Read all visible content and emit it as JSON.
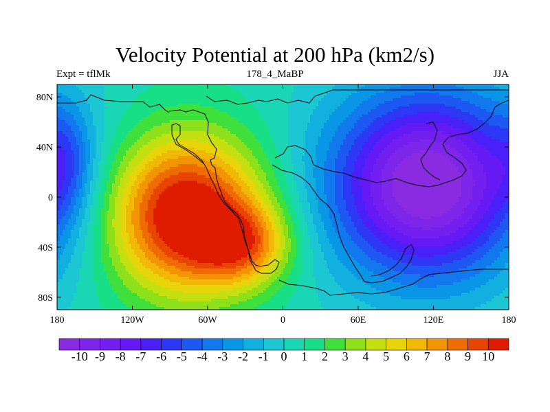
{
  "chart_data": {
    "type": "heatmap",
    "title": "Velocity Potential at 200 hPa (km2/s)",
    "left_label": "Expt = tflMk",
    "center_label": "178_4_MaBP",
    "right_label": "JJA",
    "x_range": [
      -180,
      180
    ],
    "y_range": [
      -90,
      90
    ],
    "x_ticks": [
      {
        "value": -180,
        "label": "180"
      },
      {
        "value": -120,
        "label": "120W"
      },
      {
        "value": -60,
        "label": "60W"
      },
      {
        "value": 0,
        "label": "0"
      },
      {
        "value": 60,
        "label": "60E"
      },
      {
        "value": 120,
        "label": "120E"
      },
      {
        "value": 180,
        "label": "180"
      }
    ],
    "y_ticks": [
      {
        "value": 80,
        "label": "80N"
      },
      {
        "value": 40,
        "label": "40N"
      },
      {
        "value": 0,
        "label": "0"
      },
      {
        "value": -40,
        "label": "40S"
      },
      {
        "value": -80,
        "label": "80S"
      }
    ],
    "colorbar": {
      "levels": [
        -10,
        -9,
        -8,
        -7,
        -6,
        -5,
        -4,
        -3,
        -2,
        -1,
        0,
        1,
        2,
        3,
        4,
        5,
        6,
        7,
        8,
        9,
        10
      ],
      "labels": [
        "-10",
        "-9",
        "-8",
        "-7",
        "-6",
        "-5",
        "-4",
        "-3",
        "-2",
        "-1",
        "0",
        "1",
        "2",
        "3",
        "4",
        "5",
        "6",
        "7",
        "8",
        "9",
        "10"
      ],
      "colors": [
        "#8a2be2",
        "#7e25ea",
        "#721ff0",
        "#6419f5",
        "#4a20f8",
        "#2d38f5",
        "#1d58f2",
        "#1178ee",
        "#0a96e6",
        "#12b0de",
        "#1cc6d2",
        "#1ad6b4",
        "#18de86",
        "#40e03c",
        "#8ee01a",
        "#c4e010",
        "#e8d40a",
        "#f2b806",
        "#f29404",
        "#ee6c02",
        "#e84402",
        "#e01c00"
      ]
    },
    "features": [
      {
        "name": "positive-center",
        "lon": -78,
        "lat": -14,
        "value": 11.5,
        "sx": 44,
        "sy": 44
      },
      {
        "name": "positive-lobe",
        "lon": -32,
        "lat": -38,
        "value": 5.5,
        "sx": 26,
        "sy": 22
      },
      {
        "name": "negative-center",
        "lon": 115,
        "lat": 10,
        "value": -12,
        "sx": 55,
        "sy": 52
      },
      {
        "name": "negative-lobe",
        "lon": -172,
        "lat": 30,
        "value": -2.5,
        "sx": 14,
        "sy": 30
      }
    ]
  }
}
